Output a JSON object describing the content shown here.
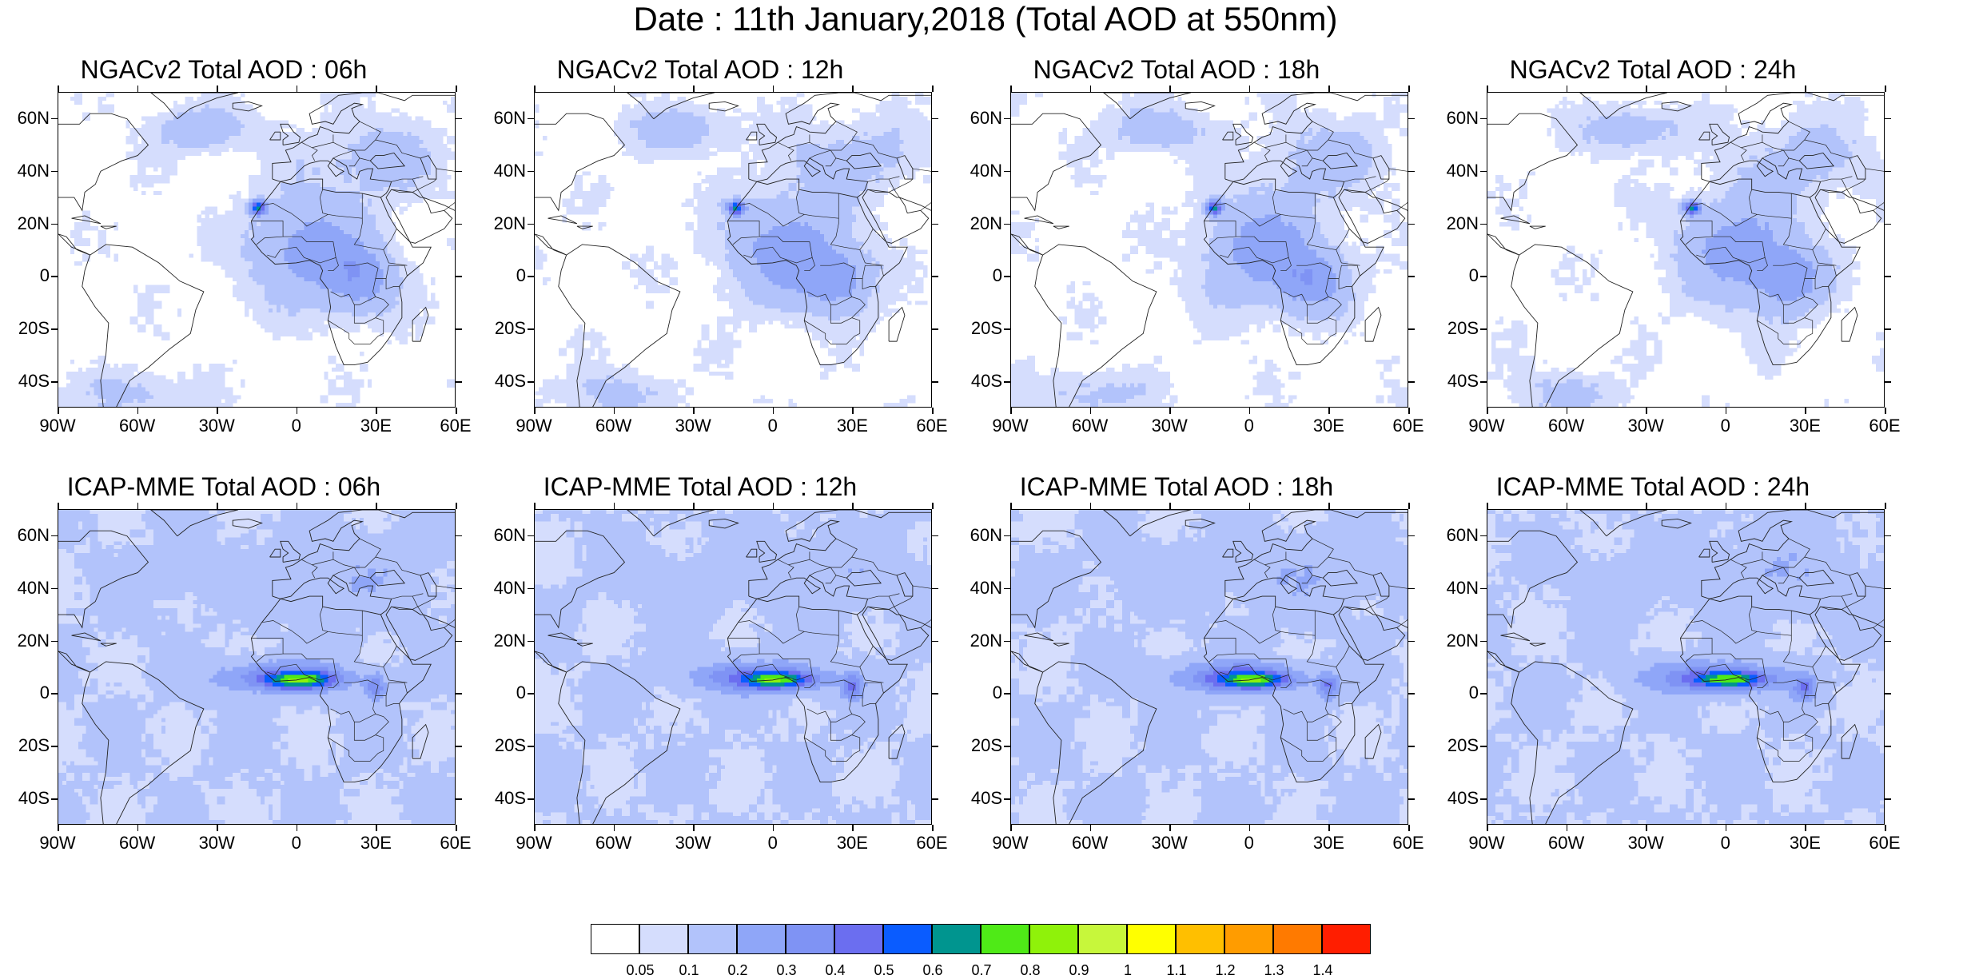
{
  "title": "Date : 11th January,2018 (Total AOD at 550nm)",
  "panels": [
    {
      "title": "NGACv2 Total AOD : 06h",
      "model": "ngac",
      "hour": 6
    },
    {
      "title": "NGACv2 Total AOD : 12h",
      "model": "ngac",
      "hour": 12
    },
    {
      "title": "NGACv2 Total AOD : 18h",
      "model": "ngac",
      "hour": 18
    },
    {
      "title": "NGACv2 Total AOD : 24h",
      "model": "ngac",
      "hour": 24
    },
    {
      "title": "ICAP-MME Total AOD : 06h",
      "model": "icap",
      "hour": 6
    },
    {
      "title": "ICAP-MME Total AOD : 12h",
      "model": "icap",
      "hour": 12
    },
    {
      "title": "ICAP-MME Total AOD : 18h",
      "model": "icap",
      "hour": 18
    },
    {
      "title": "ICAP-MME Total AOD : 24h",
      "model": "icap",
      "hour": 24
    }
  ],
  "axes": {
    "lon_ticks": [
      "90W",
      "60W",
      "30W",
      "0",
      "30E",
      "60E"
    ],
    "lon_values": [
      -90,
      -60,
      -30,
      0,
      30,
      60
    ],
    "lat_ticks": [
      "60N",
      "40N",
      "20N",
      "0",
      "20S",
      "40S"
    ],
    "lat_values": [
      60,
      40,
      20,
      0,
      -20,
      -40
    ],
    "lon_range": [
      -90,
      60
    ],
    "lat_range": [
      -50,
      70
    ]
  },
  "colorbar": {
    "labels": [
      "0.05",
      "0.1",
      "0.2",
      "0.3",
      "0.4",
      "0.5",
      "0.6",
      "0.7",
      "0.8",
      "0.9",
      "1",
      "1.1",
      "1.2",
      "1.3",
      "1.4"
    ],
    "colors": [
      "#ffffff",
      "#d5ddfd",
      "#b2c3fb",
      "#8fa6f8",
      "#7f93f4",
      "#6b6ef0",
      "#0a5cff",
      "#00958f",
      "#4fea17",
      "#8ff20a",
      "#c7f73b",
      "#ffff00",
      "#ffbf00",
      "#ff9c00",
      "#ff7a00",
      "#ff1e00"
    ]
  }
}
